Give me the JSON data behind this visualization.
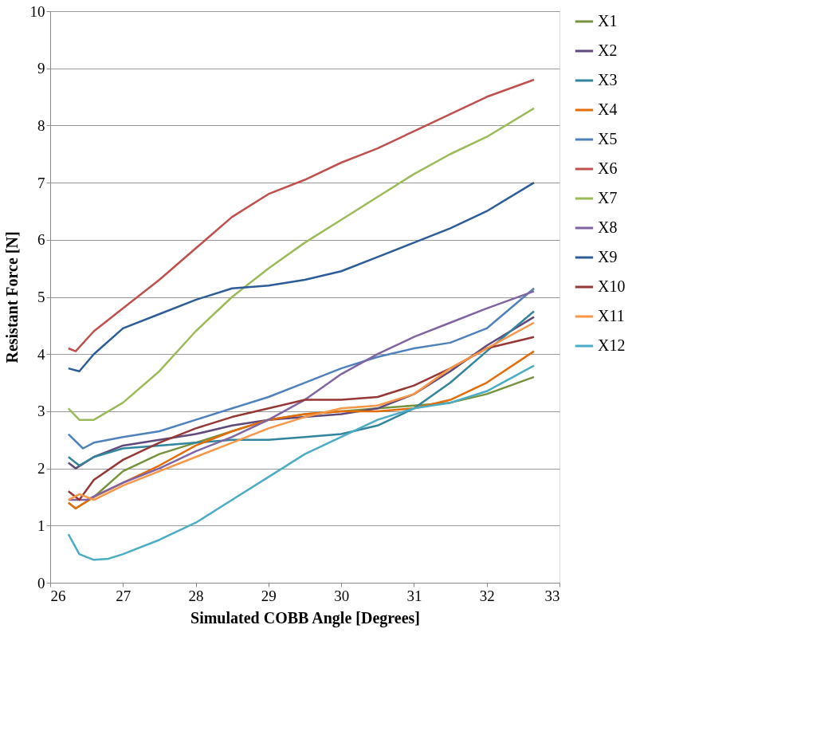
{
  "chart_data": {
    "type": "line",
    "xlabel": "Simulated COBB Angle [Degrees]",
    "ylabel": "Resistant Force [N]",
    "xlim": [
      26,
      33
    ],
    "xticks": [
      26,
      27,
      28,
      29,
      30,
      31,
      32,
      33
    ],
    "ylim": [
      0,
      10
    ],
    "yticks": [
      0,
      1,
      2,
      3,
      4,
      5,
      6,
      7,
      8,
      9,
      10
    ],
    "grid": "y",
    "legend": "right",
    "marker": "none",
    "line_style": "solid",
    "series": [
      {
        "name": "X1",
        "color": "#76923c",
        "x": [
          26.25,
          26.35,
          26.6,
          27,
          27.5,
          28,
          28.5,
          29,
          29.5,
          30,
          30.5,
          31,
          31.5,
          32,
          32.65
        ],
        "values": [
          1.4,
          1.3,
          1.5,
          1.95,
          2.25,
          2.45,
          2.65,
          2.85,
          2.95,
          3.0,
          3.05,
          3.1,
          3.15,
          3.3,
          3.6
        ]
      },
      {
        "name": "X2",
        "color": "#5f497a",
        "x": [
          26.25,
          26.35,
          26.6,
          27,
          27.5,
          28,
          28.5,
          29,
          29.5,
          30,
          30.5,
          31,
          31.5,
          32,
          32.65
        ],
        "values": [
          2.1,
          2.0,
          2.2,
          2.4,
          2.5,
          2.6,
          2.75,
          2.85,
          2.9,
          2.95,
          3.05,
          3.3,
          3.7,
          4.15,
          4.65
        ]
      },
      {
        "name": "X3",
        "color": "#31859c",
        "x": [
          26.25,
          26.4,
          26.6,
          27,
          27.5,
          28,
          28.5,
          29,
          29.5,
          30,
          30.5,
          31,
          31.5,
          32,
          32.65
        ],
        "values": [
          2.2,
          2.05,
          2.2,
          2.35,
          2.4,
          2.45,
          2.5,
          2.5,
          2.55,
          2.6,
          2.75,
          3.05,
          3.5,
          4.05,
          4.75
        ]
      },
      {
        "name": "X4",
        "color": "#e46c0a",
        "x": [
          26.25,
          26.35,
          26.6,
          27,
          27.5,
          28,
          28.5,
          29,
          29.5,
          30,
          30.5,
          31,
          31.5,
          32,
          32.65
        ],
        "values": [
          1.4,
          1.3,
          1.5,
          1.75,
          2.05,
          2.4,
          2.65,
          2.85,
          2.95,
          3.0,
          3.0,
          3.05,
          3.2,
          3.5,
          4.05
        ]
      },
      {
        "name": "X5",
        "color": "#4f81bd",
        "x": [
          26.25,
          26.45,
          26.6,
          27,
          27.5,
          28,
          28.5,
          29,
          29.5,
          30,
          30.5,
          31,
          31.5,
          32,
          32.65
        ],
        "values": [
          2.6,
          2.35,
          2.45,
          2.55,
          2.65,
          2.85,
          3.05,
          3.25,
          3.5,
          3.75,
          3.95,
          4.1,
          4.2,
          4.45,
          5.15
        ]
      },
      {
        "name": "X6",
        "color": "#c0504d",
        "x": [
          26.25,
          26.35,
          26.6,
          27,
          27.5,
          28,
          28.5,
          29,
          29.5,
          30,
          30.5,
          31,
          31.5,
          32,
          32.65
        ],
        "values": [
          4.1,
          4.05,
          4.4,
          4.8,
          5.3,
          5.85,
          6.4,
          6.8,
          7.05,
          7.35,
          7.6,
          7.9,
          8.2,
          8.5,
          8.8
        ]
      },
      {
        "name": "X7",
        "color": "#9bbb59",
        "x": [
          26.25,
          26.4,
          26.6,
          27,
          27.5,
          28,
          28.5,
          29,
          29.5,
          30,
          30.5,
          31,
          31.5,
          32,
          32.65
        ],
        "values": [
          3.05,
          2.85,
          2.85,
          3.15,
          3.7,
          4.4,
          5.0,
          5.5,
          5.95,
          6.35,
          6.75,
          7.15,
          7.5,
          7.8,
          8.3
        ]
      },
      {
        "name": "X8",
        "color": "#8064a2",
        "x": [
          26.25,
          26.5,
          27,
          27.5,
          28,
          28.5,
          29,
          29.5,
          30,
          30.5,
          31,
          31.5,
          32,
          32.65
        ],
        "values": [
          1.45,
          1.45,
          1.75,
          2.0,
          2.3,
          2.55,
          2.85,
          3.2,
          3.65,
          4.0,
          4.3,
          4.55,
          4.8,
          5.1
        ]
      },
      {
        "name": "X9",
        "color": "#2c5d98",
        "x": [
          26.25,
          26.4,
          26.6,
          27,
          27.5,
          28,
          28.5,
          29,
          29.5,
          30,
          30.5,
          31,
          31.5,
          32,
          32.65
        ],
        "values": [
          3.75,
          3.7,
          4.0,
          4.45,
          4.7,
          4.95,
          5.15,
          5.2,
          5.3,
          5.45,
          5.7,
          5.95,
          6.2,
          6.5,
          7.0
        ]
      },
      {
        "name": "X10",
        "color": "#953735",
        "x": [
          26.25,
          26.4,
          26.6,
          27,
          27.5,
          28,
          28.5,
          29,
          29.5,
          30,
          30.5,
          31,
          31.5,
          32,
          32.65
        ],
        "values": [
          1.6,
          1.45,
          1.8,
          2.15,
          2.45,
          2.7,
          2.9,
          3.05,
          3.2,
          3.2,
          3.25,
          3.45,
          3.75,
          4.1,
          4.3
        ]
      },
      {
        "name": "X11",
        "color": "#f79646",
        "x": [
          26.25,
          26.4,
          26.6,
          27,
          27.5,
          28,
          28.5,
          29,
          29.5,
          30,
          30.5,
          31,
          31.5,
          32,
          32.65
        ],
        "values": [
          1.45,
          1.55,
          1.45,
          1.7,
          1.95,
          2.2,
          2.45,
          2.7,
          2.9,
          3.05,
          3.1,
          3.3,
          3.75,
          4.1,
          4.55
        ]
      },
      {
        "name": "X12",
        "color": "#4bacc6",
        "x": [
          26.25,
          26.4,
          26.6,
          26.8,
          27,
          27.5,
          28,
          28.5,
          29,
          29.5,
          30,
          30.5,
          31,
          31.5,
          32,
          32.65
        ],
        "values": [
          0.85,
          0.5,
          0.4,
          0.42,
          0.5,
          0.75,
          1.05,
          1.45,
          1.85,
          2.25,
          2.55,
          2.85,
          3.05,
          3.15,
          3.35,
          3.8
        ]
      }
    ]
  }
}
